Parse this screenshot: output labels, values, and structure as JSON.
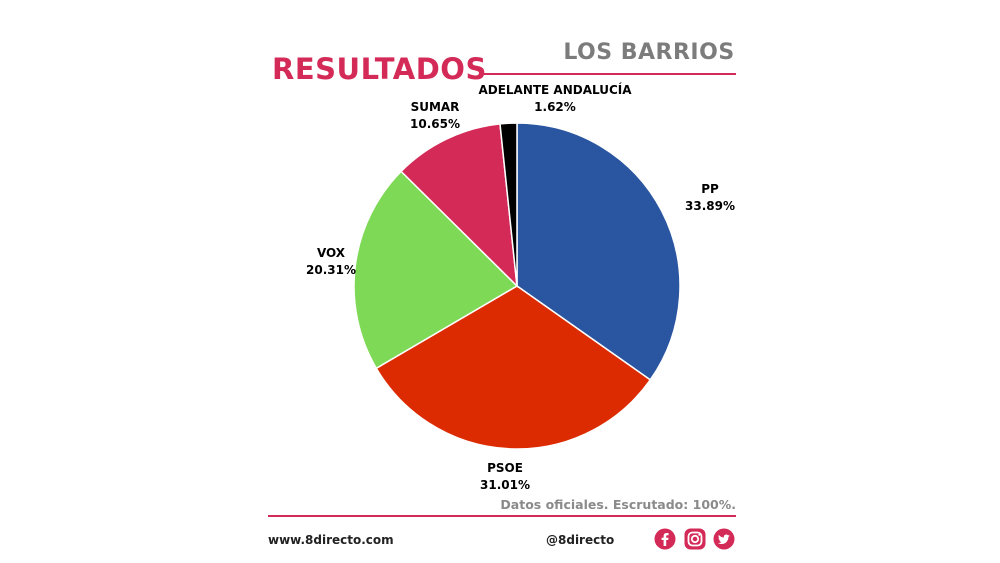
{
  "header": {
    "title": "RESULTADOS",
    "location": "LOS BARRIOS"
  },
  "chart_data": {
    "type": "pie",
    "start_angle_deg": 0,
    "direction": "clockwise",
    "slices": [
      {
        "name": "PP",
        "value_label": "33.89%",
        "value": 33.89,
        "color": "#2a55a0"
      },
      {
        "name": "PSOE",
        "value_label": "31.01%",
        "value": 31.01,
        "color": "#dc2b00"
      },
      {
        "name": "VOX",
        "value_label": "20.31%",
        "value": 20.31,
        "color": "#7ed957"
      },
      {
        "name": "SUMAR",
        "value_label": "10.65%",
        "value": 10.65,
        "color": "#d42a57"
      },
      {
        "name": "ADELANTE ANDALUCÍA",
        "value_label": "1.62%",
        "value": 1.62,
        "color": "#000000"
      }
    ]
  },
  "footnote": "Datos oficiales. Escrutado: 100%.",
  "footer": {
    "website": "www.8directo.com",
    "handle": "@8directo",
    "social_icons": [
      "facebook-icon",
      "instagram-icon",
      "twitter-icon"
    ],
    "icon_color": "#d42a57"
  }
}
